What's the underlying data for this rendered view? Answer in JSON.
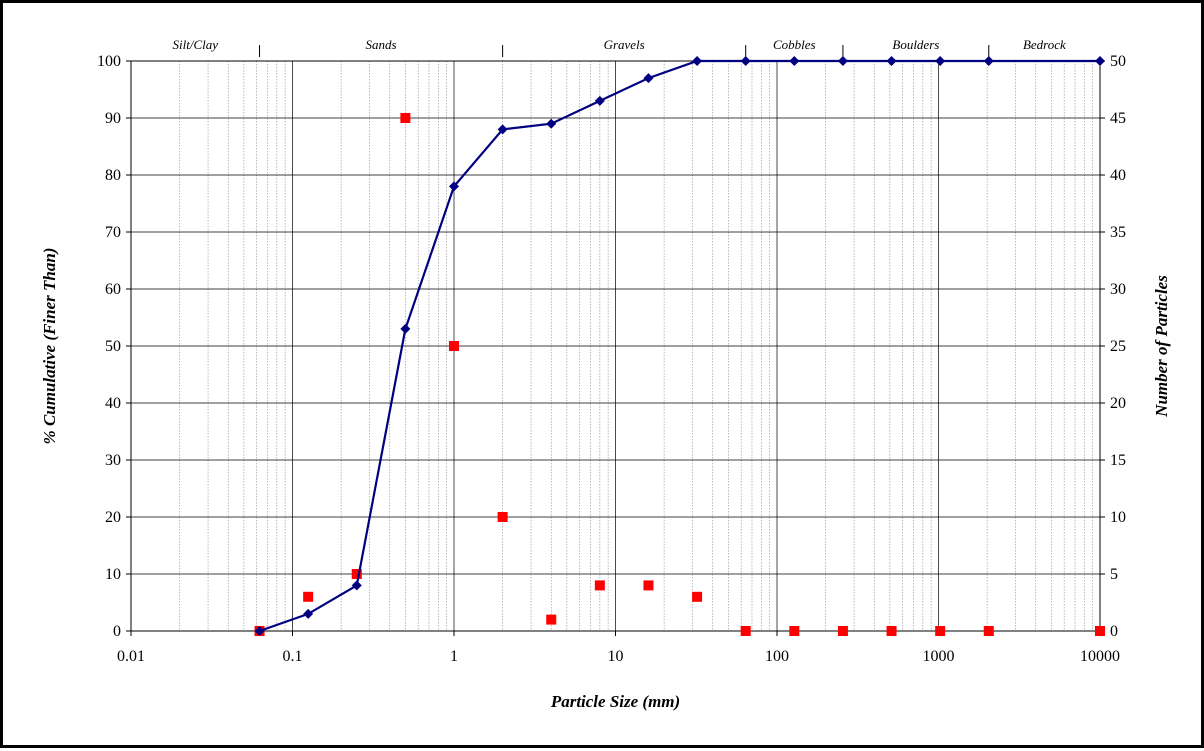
{
  "chart_data": {
    "type": "line",
    "xlabel": "Particle Size (mm)",
    "ylabel": "% Cumulative (Finer Than)",
    "y2label": "Number of Particles",
    "x_scale": "log",
    "xlim": [
      0.01,
      10000
    ],
    "ylim": [
      0,
      100
    ],
    "y2lim": [
      0,
      50
    ],
    "x_ticks": [
      "0.01",
      "0.1",
      "1",
      "10",
      "100",
      "1000",
      "10000"
    ],
    "y_ticks": [
      "0",
      "10",
      "20",
      "30",
      "40",
      "50",
      "60",
      "70",
      "80",
      "90",
      "100"
    ],
    "y2_ticks": [
      "0",
      "5",
      "10",
      "15",
      "20",
      "25",
      "30",
      "35",
      "40",
      "45",
      "50"
    ],
    "grid": true,
    "legend": "none",
    "size_classes": [
      {
        "label": "Silt/Clay",
        "from": 0.01,
        "to": 0.0625
      },
      {
        "label": "Sands",
        "from": 0.0625,
        "to": 2
      },
      {
        "label": "Gravels",
        "from": 2,
        "to": 64
      },
      {
        "label": "Cobbles",
        "from": 64,
        "to": 256
      },
      {
        "label": "Boulders",
        "from": 256,
        "to": 2048
      },
      {
        "label": "Bedrock",
        "from": 2048,
        "to": 10000
      }
    ],
    "series": [
      {
        "axis": "left",
        "kind": "line",
        "color": "#000080",
        "x": [
          0.0625,
          0.125,
          0.25,
          0.5,
          1,
          2,
          4,
          8,
          16,
          32,
          64,
          128,
          256,
          512,
          1024,
          2048,
          10000
        ],
        "y": [
          0,
          3,
          8,
          53,
          78,
          88,
          89,
          93,
          97,
          100,
          100,
          100,
          100,
          100,
          100,
          100,
          100
        ]
      },
      {
        "axis": "right",
        "kind": "scatter",
        "color": "#ff0000",
        "x": [
          0.0625,
          0.125,
          0.25,
          0.5,
          1,
          2,
          4,
          8,
          16,
          32,
          64,
          128,
          256,
          512,
          1024,
          2048,
          10000
        ],
        "y": [
          0,
          3,
          5,
          45,
          25,
          10,
          1,
          4,
          4,
          3,
          0,
          0,
          0,
          0,
          0,
          0,
          0
        ]
      }
    ]
  }
}
